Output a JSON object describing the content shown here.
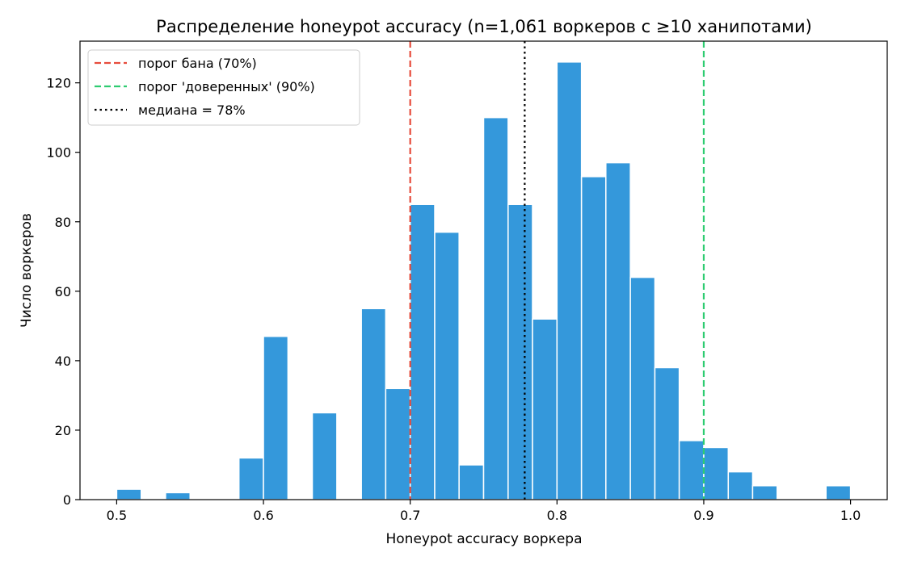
{
  "chart_data": {
    "type": "bar",
    "title": "Распределение honeypot accuracy (n=1,061 воркеров с ≥10 ханипотами)",
    "xlabel": "Honeypot accuracy воркера",
    "ylabel": "Число воркеров",
    "xlim": [
      0.475,
      1.025
    ],
    "ylim": [
      0,
      132
    ],
    "x_ticks": [
      0.5,
      0.6,
      0.7,
      0.8,
      0.9,
      1.0
    ],
    "x_tick_labels": [
      "0.5",
      "0.6",
      "0.7",
      "0.8",
      "0.9",
      "1.0"
    ],
    "y_ticks": [
      0,
      20,
      40,
      60,
      80,
      100,
      120
    ],
    "y_tick_labels": [
      "0",
      "20",
      "40",
      "60",
      "80",
      "100",
      "120"
    ],
    "grid": false,
    "bar_color": "#3498db",
    "bins": [
      {
        "x0": 0.5,
        "x1": 0.5167,
        "value": 3
      },
      {
        "x0": 0.5333,
        "x1": 0.55,
        "value": 2
      },
      {
        "x0": 0.5833,
        "x1": 0.6,
        "value": 12
      },
      {
        "x0": 0.6,
        "x1": 0.6167,
        "value": 47
      },
      {
        "x0": 0.6333,
        "x1": 0.65,
        "value": 25
      },
      {
        "x0": 0.6667,
        "x1": 0.6833,
        "value": 55
      },
      {
        "x0": 0.6833,
        "x1": 0.7,
        "value": 32
      },
      {
        "x0": 0.7,
        "x1": 0.7167,
        "value": 85
      },
      {
        "x0": 0.7167,
        "x1": 0.7333,
        "value": 77
      },
      {
        "x0": 0.7333,
        "x1": 0.75,
        "value": 10
      },
      {
        "x0": 0.75,
        "x1": 0.7667,
        "value": 110
      },
      {
        "x0": 0.7667,
        "x1": 0.7833,
        "value": 85
      },
      {
        "x0": 0.7833,
        "x1": 0.8,
        "value": 52
      },
      {
        "x0": 0.8,
        "x1": 0.8167,
        "value": 126
      },
      {
        "x0": 0.8167,
        "x1": 0.8333,
        "value": 93
      },
      {
        "x0": 0.8333,
        "x1": 0.85,
        "value": 97
      },
      {
        "x0": 0.85,
        "x1": 0.8667,
        "value": 64
      },
      {
        "x0": 0.8667,
        "x1": 0.8833,
        "value": 38
      },
      {
        "x0": 0.8833,
        "x1": 0.9,
        "value": 17
      },
      {
        "x0": 0.9,
        "x1": 0.9167,
        "value": 15
      },
      {
        "x0": 0.9167,
        "x1": 0.9333,
        "value": 8
      },
      {
        "x0": 0.9333,
        "x1": 0.95,
        "value": 4
      },
      {
        "x0": 0.9833,
        "x1": 1.0,
        "value": 4
      }
    ],
    "reference_lines": [
      {
        "label": "порог бана (70%)",
        "x": 0.7,
        "color": "#e74c3c",
        "style": "dashed"
      },
      {
        "label": "порог 'доверенных' (90%)",
        "x": 0.9,
        "color": "#2ecc71",
        "style": "dashed"
      },
      {
        "label": "медиана = 78%",
        "x": 0.778,
        "color": "#000000",
        "style": "dotted"
      }
    ],
    "legend_position": "top-left"
  }
}
